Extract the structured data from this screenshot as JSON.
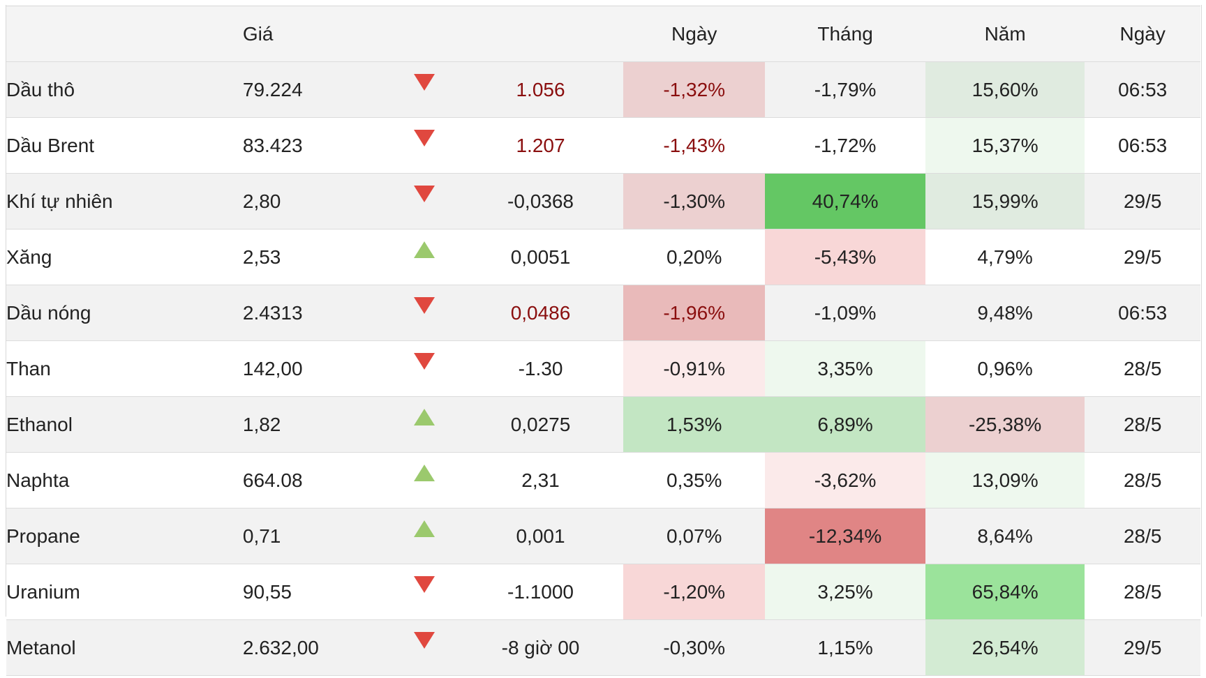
{
  "header": {
    "name_label": "",
    "price_label": "Giá",
    "arrow_label": "",
    "change_label": "",
    "day_label": "Ngày",
    "month_label": "Tháng",
    "year_label": "Năm",
    "time_label": "Ngày"
  },
  "colors": {
    "arrow_down": "#e0483f",
    "arrow_up": "#9bc96d",
    "negative_text": "#8a0e0e"
  },
  "rows": [
    {
      "name": "Dầu thô",
      "price": "79.224",
      "direction": "down",
      "change": "1.056",
      "change_negative": true,
      "day": "-1,32%",
      "day_negative": true,
      "day_bg": "#ecd0d0",
      "month": "-1,79%",
      "month_bg": "",
      "year": "15,60%",
      "year_bg": "#e0ebe0",
      "time": "06:53"
    },
    {
      "name": "Dầu Brent",
      "price": "83.423",
      "direction": "down",
      "change": "1.207",
      "change_negative": true,
      "day": "-1,43%",
      "day_negative": true,
      "day_bg": "",
      "month": "-1,72%",
      "month_bg": "",
      "year": "15,37%",
      "year_bg": "#eef8ee",
      "time": "06:53"
    },
    {
      "name": "Khí tự nhiên",
      "price": "2,80",
      "direction": "down",
      "change": "-0,0368",
      "change_negative": false,
      "day": "-1,30%",
      "day_negative": false,
      "day_bg": "#ecd0d0",
      "month": "40,74%",
      "month_bg": "#64c764",
      "year": "15,99%",
      "year_bg": "#e0ebe0",
      "time": "29/5"
    },
    {
      "name": "Xăng",
      "price": "2,53",
      "direction": "up",
      "change": "0,0051",
      "change_negative": false,
      "day": "0,20%",
      "day_negative": false,
      "day_bg": "",
      "month": "-5,43%",
      "month_bg": "#f8d7d7",
      "year": "4,79%",
      "year_bg": "",
      "time": "29/5"
    },
    {
      "name": "Dầu nóng",
      "price": "2.4313",
      "direction": "down",
      "change": "0,0486",
      "change_negative": true,
      "day": "-1,96%",
      "day_negative": true,
      "day_bg": "#e9baba",
      "month": "-1,09%",
      "month_bg": "",
      "year": "9,48%",
      "year_bg": "",
      "time": "06:53"
    },
    {
      "name": "Than",
      "price": "142,00",
      "direction": "down",
      "change": "-1.30",
      "change_negative": false,
      "day": "-0,91%",
      "day_negative": false,
      "day_bg": "#fbeaea",
      "month": "3,35%",
      "month_bg": "#eef8ee",
      "year": "0,96%",
      "year_bg": "",
      "time": "28/5"
    },
    {
      "name": "Ethanol",
      "price": "1,82",
      "direction": "up",
      "change": "0,0275",
      "change_negative": false,
      "day": "1,53%",
      "day_negative": false,
      "day_bg": "#c3e6c3",
      "month": "6,89%",
      "month_bg": "#c3e6c3",
      "year": "-25,38%",
      "year_bg": "#ecd0d0",
      "time": "28/5"
    },
    {
      "name": "Naphta",
      "price": "664.08",
      "direction": "up",
      "change": "2,31",
      "change_negative": false,
      "day": "0,35%",
      "day_negative": false,
      "day_bg": "",
      "month": "-3,62%",
      "month_bg": "#fbeaea",
      "year": "13,09%",
      "year_bg": "#eef8ee",
      "time": "28/5"
    },
    {
      "name": "Propane",
      "price": "0,71",
      "direction": "up",
      "change": "0,001",
      "change_negative": false,
      "day": "0,07%",
      "day_negative": false,
      "day_bg": "",
      "month": "-12,34%",
      "month_bg": "#e08585",
      "year": "8,64%",
      "year_bg": "",
      "time": "28/5"
    },
    {
      "name": "Uranium",
      "price": "90,55",
      "direction": "down",
      "change": "-1.1000",
      "change_negative": false,
      "day": "-1,20%",
      "day_negative": false,
      "day_bg": "#f8d7d7",
      "month": "3,25%",
      "month_bg": "#eef8ee",
      "year": "65,84%",
      "year_bg": "#9be39b",
      "time": "28/5"
    },
    {
      "name": "Metanol",
      "price": "2.632,00",
      "direction": "down",
      "change": "-8 giờ 00",
      "change_negative": false,
      "day": "-0,30%",
      "day_negative": false,
      "day_bg": "",
      "month": "1,15%",
      "month_bg": "",
      "year": "26,54%",
      "year_bg": "#d3ebd3",
      "time": "29/5"
    }
  ]
}
